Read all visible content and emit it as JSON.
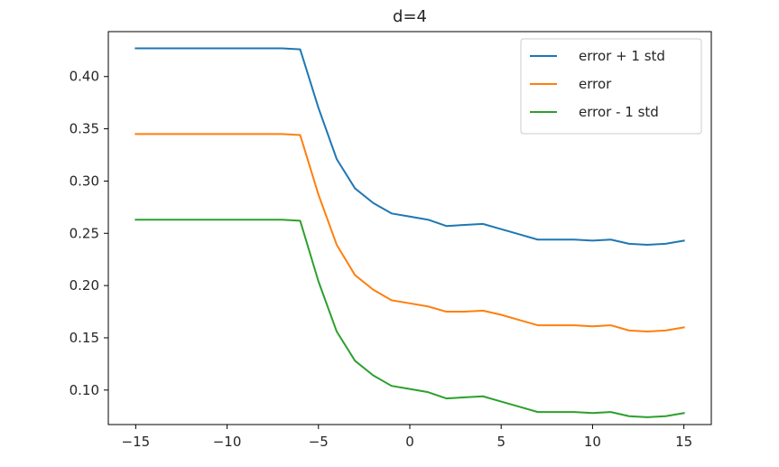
{
  "chart_data": {
    "type": "line",
    "title": "d=4",
    "xlabel": "",
    "ylabel": "",
    "xlim": [
      -16.5,
      16.5
    ],
    "ylim": [
      0.067,
      0.443
    ],
    "xticks": [
      -15,
      -10,
      -5,
      0,
      5,
      10,
      15
    ],
    "xtick_labels": [
      "−15",
      "−10",
      "−5",
      "0",
      "5",
      "10",
      "15"
    ],
    "yticks": [
      0.1,
      0.15,
      0.2,
      0.25,
      0.3,
      0.35,
      0.4
    ],
    "ytick_labels": [
      "0.10",
      "0.15",
      "0.20",
      "0.25",
      "0.30",
      "0.35",
      "0.40"
    ],
    "grid": false,
    "legend_position": "top-right",
    "x": [
      -15,
      -14,
      -13,
      -12,
      -11,
      -10,
      -9,
      -8,
      -7,
      -6,
      -5,
      -4,
      -3,
      -2,
      -1,
      0,
      1,
      2,
      3,
      4,
      5,
      6,
      7,
      8,
      9,
      10,
      11,
      12,
      13,
      14,
      15
    ],
    "series": [
      {
        "name": "error + 1 std",
        "color": "#1f77b4",
        "values": [
          0.427,
          0.427,
          0.427,
          0.427,
          0.427,
          0.427,
          0.427,
          0.427,
          0.427,
          0.426,
          0.37,
          0.321,
          0.293,
          0.279,
          0.269,
          0.266,
          0.263,
          0.257,
          0.258,
          0.259,
          0.254,
          0.249,
          0.244,
          0.244,
          0.244,
          0.243,
          0.244,
          0.24,
          0.239,
          0.24,
          0.243
        ]
      },
      {
        "name": "error",
        "color": "#ff7f0e",
        "values": [
          0.345,
          0.345,
          0.345,
          0.345,
          0.345,
          0.345,
          0.345,
          0.345,
          0.345,
          0.344,
          0.287,
          0.239,
          0.21,
          0.196,
          0.186,
          0.183,
          0.18,
          0.175,
          0.175,
          0.176,
          0.172,
          0.167,
          0.162,
          0.162,
          0.162,
          0.161,
          0.162,
          0.157,
          0.156,
          0.157,
          0.16
        ]
      },
      {
        "name": "error - 1 std",
        "color": "#2ca02c",
        "values": [
          0.263,
          0.263,
          0.263,
          0.263,
          0.263,
          0.263,
          0.263,
          0.263,
          0.263,
          0.262,
          0.204,
          0.156,
          0.128,
          0.114,
          0.104,
          0.101,
          0.098,
          0.092,
          0.093,
          0.094,
          0.089,
          0.084,
          0.079,
          0.079,
          0.079,
          0.078,
          0.079,
          0.075,
          0.074,
          0.075,
          0.078
        ]
      }
    ]
  }
}
